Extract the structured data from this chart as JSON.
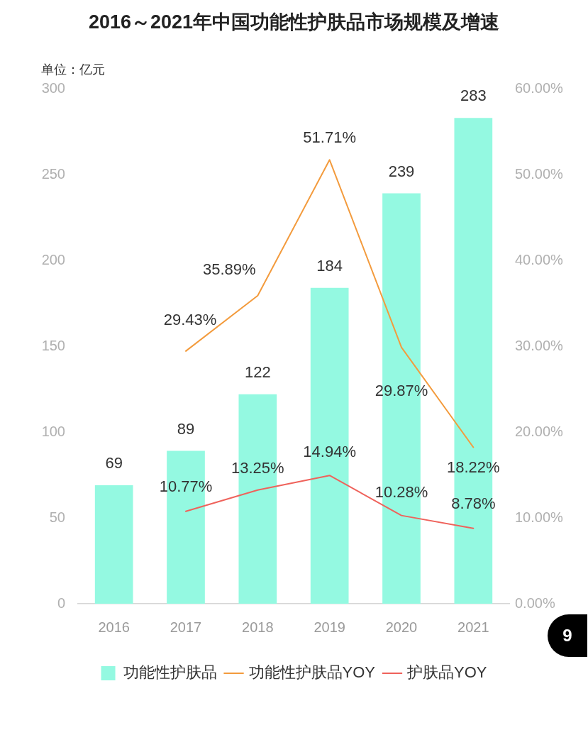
{
  "chart_data": {
    "type": "bar",
    "title": "2016～2021年中国功能性护肤品市场规模及增速",
    "ylabel": "单位：亿元",
    "categories": [
      "2016",
      "2017",
      "2018",
      "2019",
      "2020",
      "2021"
    ],
    "series": [
      {
        "name": "功能性护肤品",
        "color": "#94f9e1",
        "values": [
          69,
          89,
          122,
          184,
          239,
          283
        ],
        "value_labels": [
          "69",
          "89",
          "122",
          "184",
          "239",
          "283"
        ]
      },
      {
        "name": "功能性护肤品YOY",
        "type": "line",
        "axis": "y2",
        "color": "#f39b3d",
        "values": [
          null,
          29.43,
          35.89,
          51.71,
          29.87,
          18.22
        ],
        "value_labels": [
          null,
          "29.43%",
          "35.89%",
          "51.71%",
          "29.87%",
          "18.22%"
        ]
      },
      {
        "name": "护肤品YOY",
        "type": "line",
        "axis": "y2",
        "color": "#ef625b",
        "values": [
          null,
          10.77,
          13.25,
          14.94,
          10.28,
          8.78
        ],
        "value_labels": [
          null,
          "10.77%",
          "13.25%",
          "14.94%",
          "10.28%",
          "8.78%"
        ]
      }
    ],
    "ylim": [
      0,
      300
    ],
    "yticks": [
      0,
      50,
      100,
      150,
      200,
      250,
      300
    ],
    "y2lim": [
      0,
      60
    ],
    "y2ticks": [
      {
        "value": 0,
        "label": "0.00%"
      },
      {
        "value": 10,
        "label": "10.00%"
      },
      {
        "value": 20,
        "label": "20.00%"
      },
      {
        "value": 30,
        "label": "30.00%"
      },
      {
        "value": 40,
        "label": "40.00%"
      },
      {
        "value": 50,
        "label": "50.00%"
      },
      {
        "value": 60,
        "label": "60.00%"
      }
    ],
    "legend": "bottom",
    "annotations": [
      "9"
    ]
  }
}
